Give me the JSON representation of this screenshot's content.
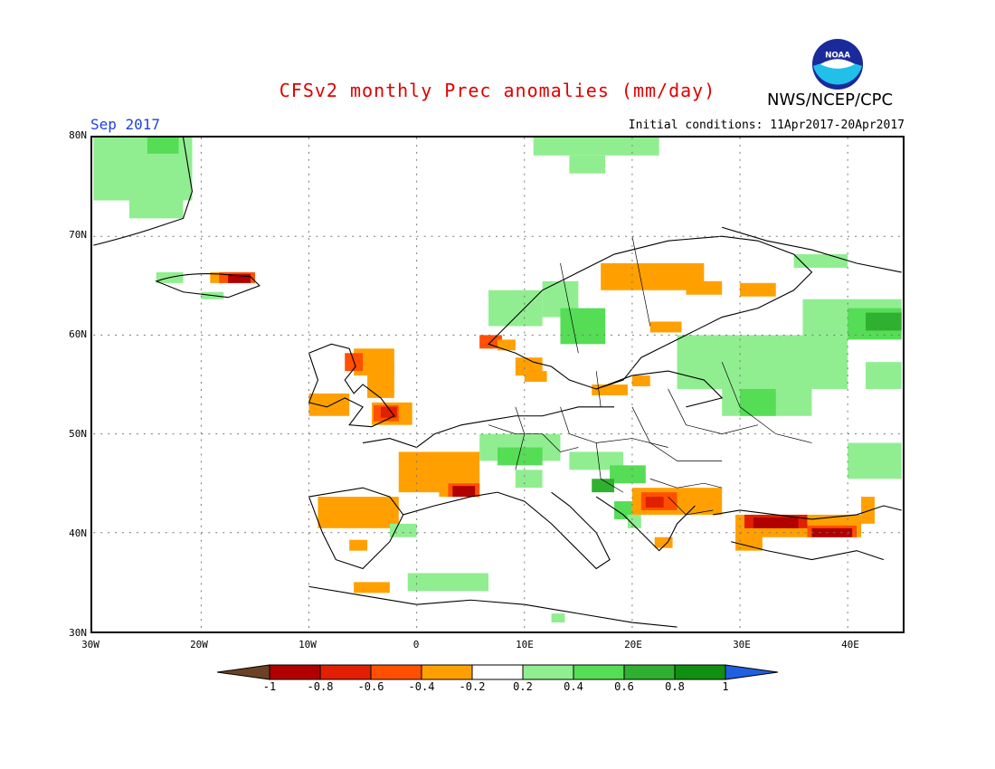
{
  "header": {
    "title": "CFSv2 monthly Prec anomalies (mm/day)",
    "org": "NWS/NCEP/CPC",
    "month": "Sep 2017",
    "initial_conditions": "Initial conditions: 11Apr2017-20Apr2017",
    "logo_text": "NOAA"
  },
  "axes": {
    "lat_labels": [
      "80N",
      "70N",
      "60N",
      "50N",
      "40N",
      "30N"
    ],
    "lon_labels": [
      "30W",
      "20W",
      "10W",
      "0",
      "10E",
      "20E",
      "30E",
      "40E"
    ]
  },
  "colorbar": {
    "labels": [
      "-1",
      "-0.8",
      "-0.6",
      "-0.4",
      "-0.2",
      "0.2",
      "0.4",
      "0.6",
      "0.8",
      "1"
    ],
    "colors": [
      "#6b4226",
      "#b00000",
      "#e02000",
      "#ff5000",
      "#ffa000",
      "#ffffff",
      "#90ee90",
      "#55dd55",
      "#30b030",
      "#109010",
      "#2060e0"
    ]
  },
  "colors": {
    "neg_light": "#ffa000",
    "neg_mid": "#ff5000",
    "neg_strong": "#e02000",
    "neg_extreme": "#b00000",
    "pos_light": "#90ee90",
    "pos_mid": "#55dd55",
    "pos_strong": "#30b030"
  }
}
